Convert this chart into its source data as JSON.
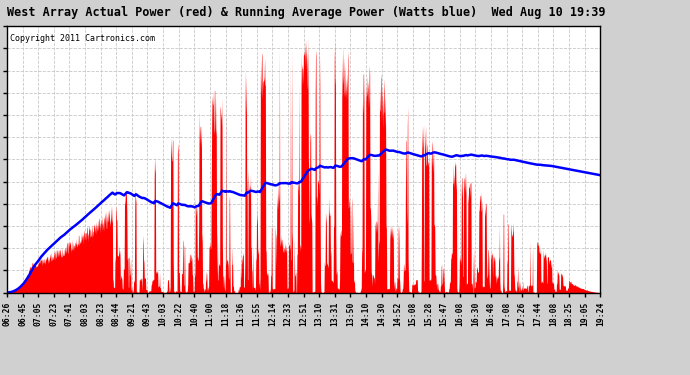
{
  "title": "West Array Actual Power (red) & Running Average Power (Watts blue)  Wed Aug 10 19:39",
  "copyright": "Copyright 2011 Cartronics.com",
  "ymax": 1957.1,
  "ymin": 0.0,
  "yticks": [
    0.0,
    163.1,
    326.2,
    489.3,
    652.4,
    815.5,
    978.5,
    1141.6,
    1304.7,
    1467.8,
    1630.9,
    1794.0,
    1957.1
  ],
  "background_color": "#d0d0d0",
  "plot_bg_color": "#ffffff",
  "red_color": "#ff0000",
  "blue_color": "#0000ff",
  "grid_color": "#c8c8c8",
  "title_color": "#000000",
  "xtick_labels": [
    "06:26",
    "06:45",
    "07:05",
    "07:23",
    "07:41",
    "08:03",
    "08:23",
    "08:44",
    "09:21",
    "09:43",
    "10:03",
    "10:22",
    "10:40",
    "11:00",
    "11:18",
    "11:36",
    "11:55",
    "12:14",
    "12:33",
    "12:51",
    "13:10",
    "13:31",
    "13:50",
    "14:10",
    "14:30",
    "14:52",
    "15:08",
    "15:28",
    "15:47",
    "16:08",
    "16:30",
    "16:48",
    "17:08",
    "17:26",
    "17:44",
    "18:08",
    "18:25",
    "19:05",
    "19:24"
  ]
}
